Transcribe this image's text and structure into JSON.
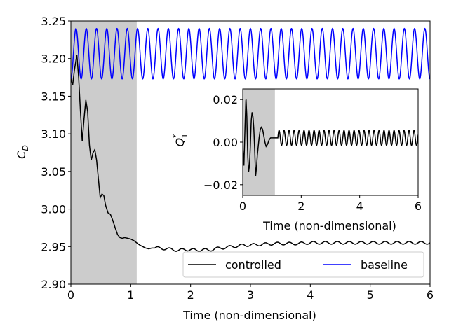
{
  "chart_data": [
    {
      "name": "main",
      "type": "line",
      "xlabel": "Time (non-dimensional)",
      "ylabel_base": "C",
      "ylabel_sub": "D",
      "xlim": [
        0,
        6
      ],
      "ylim": [
        2.9,
        3.25
      ],
      "xticks": [
        0,
        1,
        2,
        3,
        4,
        5,
        6
      ],
      "xtick_labels": [
        "0",
        "1",
        "2",
        "3",
        "4",
        "5",
        "6"
      ],
      "yticks": [
        2.9,
        2.95,
        3.0,
        3.05,
        3.1,
        3.15,
        3.2,
        3.25
      ],
      "ytick_labels": [
        "2.90",
        "2.95",
        "3.00",
        "3.05",
        "3.10",
        "3.15",
        "3.20",
        "3.25"
      ],
      "shaded_region": [
        0.0,
        1.1
      ],
      "grid": false,
      "legend": {
        "placement": "lower-right",
        "columns": 2
      },
      "series": [
        {
          "name": "controlled",
          "color": "#000000",
          "x": [
            0.0,
            0.03,
            0.06,
            0.1,
            0.13,
            0.16,
            0.19,
            0.22,
            0.25,
            0.28,
            0.31,
            0.34,
            0.37,
            0.4,
            0.43,
            0.46,
            0.49,
            0.52,
            0.55,
            0.58,
            0.62,
            0.66,
            0.7,
            0.74,
            0.78,
            0.82,
            0.86,
            0.9,
            0.95,
            1.0,
            1.05,
            1.1,
            1.15,
            1.2,
            1.25,
            1.3,
            1.35,
            1.4,
            1.5,
            1.6,
            1.7,
            1.8,
            1.9,
            2.0,
            2.1,
            2.2,
            2.3,
            2.4,
            2.5,
            2.6,
            2.7,
            2.8,
            2.9,
            3.0,
            3.2,
            3.4,
            3.6,
            3.8,
            4.0,
            4.2,
            4.4,
            4.6,
            4.8,
            5.0,
            5.2,
            5.4,
            5.6,
            5.8,
            6.0
          ],
          "y": [
            3.173,
            3.165,
            3.185,
            3.205,
            3.175,
            3.13,
            3.09,
            3.12,
            3.145,
            3.13,
            3.085,
            3.065,
            3.075,
            3.079,
            3.065,
            3.04,
            3.015,
            3.02,
            3.018,
            3.005,
            2.995,
            2.993,
            2.985,
            2.975,
            2.966,
            2.962,
            2.961,
            2.962,
            2.961,
            2.96,
            2.958,
            2.955,
            2.952,
            2.95,
            2.948,
            2.947,
            2.948,
            2.948,
            2.948,
            2.947,
            2.946,
            2.945,
            2.946,
            2.946,
            2.945,
            2.946,
            2.945,
            2.947,
            2.948,
            2.949,
            2.95,
            2.951,
            2.952,
            2.952,
            2.953,
            2.954,
            2.954,
            2.954,
            2.955,
            2.955,
            2.955,
            2.955,
            2.955,
            2.955,
            2.955,
            2.955,
            2.955,
            2.955,
            2.955
          ],
          "ripple_amplitude": 0.0018,
          "ripple_period": 0.2,
          "ripple_start": 1.4
        },
        {
          "name": "baseline",
          "color": "#0000ff",
          "type": "sinusoid",
          "mean": 3.2065,
          "amplitude": 0.0335,
          "period": 0.1714,
          "phase_start": -1.5708,
          "x_range": [
            0,
            6
          ]
        }
      ]
    },
    {
      "name": "inset",
      "type": "line",
      "xlabel": "Time (non-dimensional)",
      "ylabel_base": "Q",
      "ylabel_sup": "*",
      "ylabel_sub": "1",
      "xlim": [
        0,
        6
      ],
      "ylim": [
        -0.025,
        0.025
      ],
      "xticks": [
        0,
        2,
        4,
        6
      ],
      "xtick_labels": [
        "0",
        "2",
        "4",
        "6"
      ],
      "yticks": [
        -0.02,
        0.0,
        0.02
      ],
      "ytick_labels": [
        "−0.02",
        "0.00",
        "0.02"
      ],
      "shaded_region": [
        0.0,
        1.1
      ],
      "grid": false,
      "series": [
        {
          "name": "Q1",
          "color": "#000000",
          "x": [
            0.0,
            0.04,
            0.08,
            0.11,
            0.14,
            0.17,
            0.2,
            0.23,
            0.26,
            0.29,
            0.32,
            0.35,
            0.38,
            0.41,
            0.44,
            0.47,
            0.5,
            0.53,
            0.56,
            0.6,
            0.64,
            0.68,
            0.72,
            0.76,
            0.8,
            0.85,
            0.9,
            0.95,
            1.0,
            1.05,
            1.1,
            1.15,
            1.2
          ],
          "y": [
            -0.002,
            -0.011,
            0.008,
            0.021,
            0.012,
            -0.006,
            -0.014,
            -0.011,
            -0.002,
            0.01,
            0.014,
            0.012,
            0.006,
            -0.004,
            -0.016,
            -0.012,
            -0.006,
            -0.002,
            0.002,
            0.006,
            0.007,
            0.006,
            0.003,
            0.0,
            -0.002,
            -0.001,
            0.001,
            0.002,
            0.002,
            0.002,
            0.002,
            0.002,
            0.002
          ],
          "osc_start": 1.2,
          "osc_end": 6.0,
          "osc_center": 0.002,
          "osc_amplitude": 0.0035,
          "osc_period": 0.171
        }
      ]
    }
  ],
  "legend_labels": {
    "controlled": "controlled",
    "baseline": "baseline"
  }
}
